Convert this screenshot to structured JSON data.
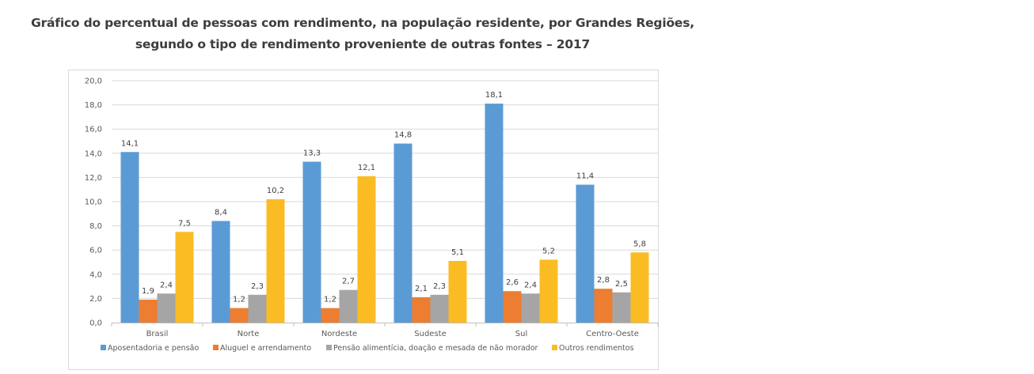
{
  "chart_data": {
    "type": "bar",
    "title_line1": "Gráfico do percentual de pessoas com rendimento, na população residente, por Grandes Regiões,",
    "title_line2": "segundo o tipo de rendimento proveniente de outras fontes – 2017",
    "categories": [
      "Brasil",
      "Norte",
      "Nordeste",
      "Sudeste",
      "Sul",
      "Centro-Oeste"
    ],
    "series": [
      {
        "name": "Aposentadoria e pensão",
        "color": "#5b9bd5",
        "values": [
          14.1,
          8.4,
          13.3,
          14.8,
          18.1,
          11.4
        ]
      },
      {
        "name": "Aluguel e arrendamento",
        "color": "#ed7d31",
        "values": [
          1.9,
          1.2,
          1.2,
          2.1,
          2.6,
          2.8
        ]
      },
      {
        "name": "Pensão alimentícia, doação e mesada de não morador",
        "color": "#a5a5a5",
        "values": [
          2.4,
          2.3,
          2.7,
          2.3,
          2.4,
          2.5
        ]
      },
      {
        "name": "Outros rendimentos",
        "color": "#fbbc23",
        "values": [
          7.5,
          10.2,
          12.1,
          5.1,
          5.2,
          5.8
        ]
      }
    ],
    "xlabel": "",
    "ylabel": "",
    "ylim": [
      0,
      20
    ],
    "yticks": [
      0,
      2,
      4,
      6,
      8,
      10,
      12,
      14,
      16,
      18,
      20
    ],
    "ytick_labels": [
      "0,0",
      "2,0",
      "4,0",
      "6,0",
      "8,0",
      "10,0",
      "12,0",
      "14,0",
      "16,0",
      "18,0",
      "20,0"
    ],
    "grid": true,
    "legend_position": "bottom",
    "decimal_separator": ","
  }
}
